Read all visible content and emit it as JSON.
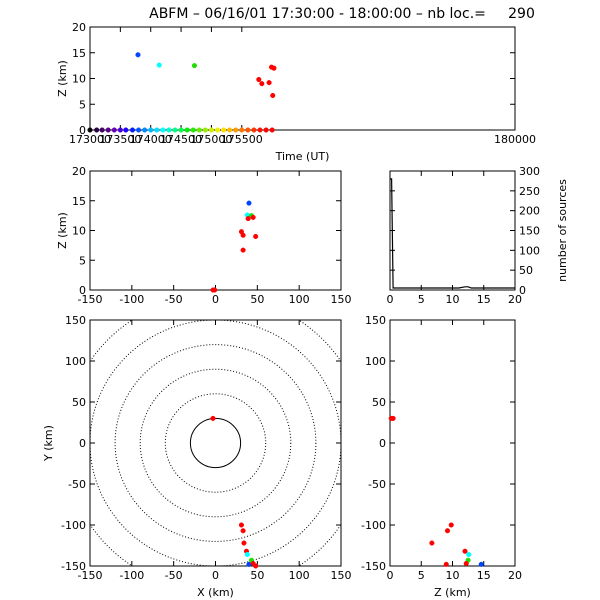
{
  "title": {
    "station": "ABFM",
    "date": "06/16/01",
    "range": "17:30:00 - 18:00:00",
    "count_label": "nb loc.=",
    "count": "290"
  },
  "chart_data": [
    {
      "id": "time_z",
      "type": "scatter",
      "xlabel": "Time (UT)",
      "ylabel": "Z (km)",
      "xlim": [
        173000,
        180000
      ],
      "ylim": [
        0,
        20
      ],
      "xticks": [
        173000,
        173500,
        174000,
        174500,
        175000,
        175500,
        180000
      ],
      "yticks": [
        0,
        5,
        10,
        15,
        20
      ],
      "points": [
        {
          "x": 173790,
          "y": 14.6,
          "c": "#0044ff"
        },
        {
          "x": 174140,
          "y": 12.6,
          "c": "#00ffff"
        },
        {
          "x": 174720,
          "y": 12.5,
          "c": "#22dd00"
        },
        {
          "x": 175780,
          "y": 9.8,
          "c": "#ff0000"
        },
        {
          "x": 175830,
          "y": 9.0,
          "c": "#ff0000"
        },
        {
          "x": 175950,
          "y": 9.2,
          "c": "#ff0000"
        },
        {
          "x": 175990,
          "y": 12.2,
          "c": "#ff0000"
        },
        {
          "x": 176030,
          "y": 12.0,
          "c": "#ff0000"
        },
        {
          "x": 176010,
          "y": 6.7,
          "c": "#ff0000"
        },
        {
          "x": 173000,
          "y": 0,
          "c": "#000000"
        },
        {
          "x": 173110,
          "y": 0,
          "c": "#220044"
        },
        {
          "x": 173200,
          "y": 0,
          "c": "#440066"
        },
        {
          "x": 173300,
          "y": 0,
          "c": "#550088"
        },
        {
          "x": 173400,
          "y": 0,
          "c": "#6600bb"
        },
        {
          "x": 173500,
          "y": 0,
          "c": "#4400dd"
        },
        {
          "x": 173590,
          "y": 0,
          "c": "#2200ff"
        },
        {
          "x": 173700,
          "y": 0,
          "c": "#0022ff"
        },
        {
          "x": 173800,
          "y": 0,
          "c": "#0055ff"
        },
        {
          "x": 173900,
          "y": 0,
          "c": "#0088ff"
        },
        {
          "x": 174000,
          "y": 0,
          "c": "#00bbff"
        },
        {
          "x": 174100,
          "y": 0,
          "c": "#00ddff"
        },
        {
          "x": 174200,
          "y": 0,
          "c": "#00ffff"
        },
        {
          "x": 174300,
          "y": 0,
          "c": "#00ffcc"
        },
        {
          "x": 174400,
          "y": 0,
          "c": "#00ff88"
        },
        {
          "x": 174500,
          "y": 0,
          "c": "#00ff44"
        },
        {
          "x": 174600,
          "y": 0,
          "c": "#00ee00"
        },
        {
          "x": 174700,
          "y": 0,
          "c": "#22ee00"
        },
        {
          "x": 174800,
          "y": 0,
          "c": "#66ee00"
        },
        {
          "x": 174900,
          "y": 0,
          "c": "#99ee00"
        },
        {
          "x": 175000,
          "y": 0,
          "c": "#ccee00"
        },
        {
          "x": 175100,
          "y": 0,
          "c": "#eeee00"
        },
        {
          "x": 175200,
          "y": 0,
          "c": "#ffdd00"
        },
        {
          "x": 175300,
          "y": 0,
          "c": "#ffbb00"
        },
        {
          "x": 175400,
          "y": 0,
          "c": "#ff9900"
        },
        {
          "x": 175500,
          "y": 0,
          "c": "#ff7700"
        },
        {
          "x": 175600,
          "y": 0,
          "c": "#ff5500"
        },
        {
          "x": 175700,
          "y": 0,
          "c": "#ff3300"
        },
        {
          "x": 175800,
          "y": 0,
          "c": "#ff1100"
        },
        {
          "x": 175900,
          "y": 0,
          "c": "#ff0000"
        },
        {
          "x": 176000,
          "y": 0,
          "c": "#ff0000"
        }
      ]
    },
    {
      "id": "x_z",
      "type": "scatter",
      "xlabel": "",
      "ylabel": "Z (km)",
      "xlim": [
        -150,
        150
      ],
      "ylim": [
        0,
        20
      ],
      "xticks": [
        -150,
        -100,
        -50,
        0,
        50,
        100,
        150
      ],
      "yticks": [
        0,
        5,
        10,
        15,
        20
      ],
      "points": [
        {
          "x": 40,
          "y": 14.6,
          "c": "#0044ff"
        },
        {
          "x": 38,
          "y": 12.6,
          "c": "#00ffff"
        },
        {
          "x": 43,
          "y": 12.5,
          "c": "#22dd00"
        },
        {
          "x": 45,
          "y": 12.2,
          "c": "#ff0000"
        },
        {
          "x": 39,
          "y": 12.0,
          "c": "#ff0000"
        },
        {
          "x": 31,
          "y": 9.8,
          "c": "#ff0000"
        },
        {
          "x": 33,
          "y": 9.2,
          "c": "#ff0000"
        },
        {
          "x": 48,
          "y": 9.0,
          "c": "#ff0000"
        },
        {
          "x": 33,
          "y": 6.7,
          "c": "#ff0000"
        },
        {
          "x": -3,
          "y": 0,
          "c": "#ff0000"
        },
        {
          "x": -1,
          "y": 0,
          "c": "#ff0000"
        }
      ]
    },
    {
      "id": "z_histogram",
      "type": "line",
      "xlabel": "",
      "ylabel": "number of sources",
      "xlim": [
        0,
        20
      ],
      "ylim": [
        0,
        300
      ],
      "xticks": [
        0,
        5,
        10,
        15,
        20
      ],
      "yticks": [
        0,
        50,
        100,
        150,
        200,
        250,
        300
      ],
      "x": [
        0,
        0.25,
        0.5,
        1,
        2,
        3,
        4,
        5,
        6,
        7,
        8,
        9,
        10,
        11,
        12,
        12.5,
        13,
        14,
        15,
        16,
        17,
        18,
        19,
        20
      ],
      "y": [
        280,
        280,
        5,
        5,
        5,
        5,
        5,
        5,
        5,
        5,
        5,
        5,
        5,
        5,
        8,
        8,
        5,
        5,
        5,
        5,
        5,
        5,
        5,
        5
      ]
    },
    {
      "id": "x_y",
      "type": "scatter",
      "xlabel": "X (km)",
      "ylabel": "Y (km)",
      "xlim": [
        -150,
        150
      ],
      "ylim": [
        -150,
        150
      ],
      "xticks": [
        -150,
        -100,
        -50,
        0,
        50,
        100,
        150
      ],
      "yticks": [
        -150,
        -100,
        -50,
        0,
        50,
        100,
        150
      ],
      "ring_radii": [
        30,
        60,
        90,
        120,
        150,
        180
      ],
      "points": [
        {
          "x": -3,
          "y": 30,
          "c": "#ff0000"
        },
        {
          "x": 31,
          "y": -100,
          "c": "#ff0000"
        },
        {
          "x": 33,
          "y": -107,
          "c": "#ff0000"
        },
        {
          "x": 34,
          "y": -122,
          "c": "#ff0000"
        },
        {
          "x": 37,
          "y": -132,
          "c": "#ff0000"
        },
        {
          "x": 38,
          "y": -136,
          "c": "#00ffff"
        },
        {
          "x": 40,
          "y": -148,
          "c": "#0044ff"
        },
        {
          "x": 43,
          "y": -143,
          "c": "#22dd00"
        },
        {
          "x": 45,
          "y": -147,
          "c": "#ff0000"
        },
        {
          "x": 48,
          "y": -150,
          "c": "#ff0000"
        }
      ]
    },
    {
      "id": "z_y",
      "type": "scatter",
      "xlabel": "Z (km)",
      "ylabel": "",
      "xlim": [
        0,
        20
      ],
      "ylim": [
        -150,
        150
      ],
      "xticks": [
        0,
        5,
        10,
        15,
        20
      ],
      "yticks": [
        -150,
        -100,
        -50,
        0,
        50,
        100,
        150
      ],
      "points": [
        {
          "x": 0.2,
          "y": 30,
          "c": "#ff0000"
        },
        {
          "x": 0.5,
          "y": 30,
          "c": "#ff0000"
        },
        {
          "x": 9.8,
          "y": -100,
          "c": "#ff0000"
        },
        {
          "x": 9.2,
          "y": -107,
          "c": "#ff0000"
        },
        {
          "x": 6.7,
          "y": -122,
          "c": "#ff0000"
        },
        {
          "x": 12.0,
          "y": -132,
          "c": "#ff0000"
        },
        {
          "x": 12.6,
          "y": -136,
          "c": "#00ffff"
        },
        {
          "x": 12.5,
          "y": -143,
          "c": "#22dd00"
        },
        {
          "x": 12.2,
          "y": -147,
          "c": "#ff0000"
        },
        {
          "x": 9.0,
          "y": -148,
          "c": "#ff0000"
        },
        {
          "x": 14.6,
          "y": -148,
          "c": "#0044ff"
        }
      ]
    }
  ]
}
